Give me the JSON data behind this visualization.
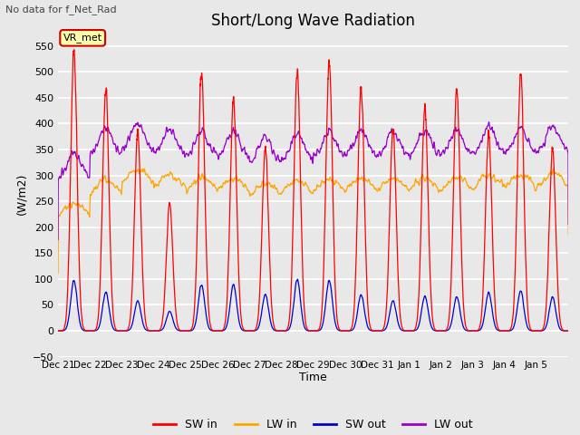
{
  "title": "Short/Long Wave Radiation",
  "subtitle": "No data for f_Net_Rad",
  "ylabel": "(W/m2)",
  "xlabel": "Time",
  "ylim": [
    -50,
    580
  ],
  "yticks": [
    -50,
    0,
    50,
    100,
    150,
    200,
    250,
    300,
    350,
    400,
    450,
    500,
    550
  ],
  "legend_labels": [
    "SW in",
    "LW in",
    "SW out",
    "LW out"
  ],
  "sw_in_color": "#ff0000",
  "lw_in_color": "#ffa500",
  "sw_out_color": "#0000cc",
  "lw_out_color": "#9900cc",
  "annotation_text": "VR_met",
  "background_color": "#e8e8e8",
  "plot_bg_color": "#e8e8e8",
  "grid_color": "#ffffff",
  "title_fontsize": 12,
  "n_days": 16,
  "points_per_day": 288
}
